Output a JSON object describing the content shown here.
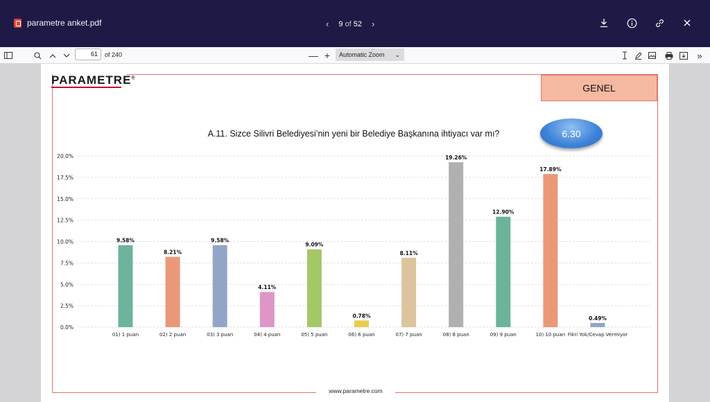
{
  "viewer": {
    "file_name": "parametre anket.pdf",
    "current_page": "9",
    "of_label": "of",
    "total_pages": "52",
    "page_input_value": "61",
    "page_of_label": "of 240",
    "zoom": "Automatic Zoom",
    "icons": [
      "download-icon",
      "info-icon",
      "link-icon",
      "close-icon",
      "sidebar-toggle-icon",
      "search-icon",
      "chevron-up-icon",
      "chevron-down-icon",
      "zoom-out-icon",
      "zoom-in-icon",
      "text-cursor-icon",
      "pen-icon",
      "image-icon",
      "print-icon",
      "save-icon",
      "more-tools-icon"
    ]
  },
  "document": {
    "logo_text": "PARAMETRE",
    "logo_mark": "®",
    "section_badge": "GENEL",
    "question_title": "A.11. Sizce Silivri Belediyesi’nin yeni bir Belediye Başkanına ihtiyacı var mı?",
    "score": "6.30",
    "footer_url": "www.parametre.com"
  },
  "chart_data": {
    "type": "bar",
    "title": "A.11. Sizce Silivri Belediyesi’nin yeni bir Belediye Başkanına ihtiyacı var mı?",
    "xlabel": "",
    "ylabel": "",
    "ylim": [
      0,
      20
    ],
    "yticks": [
      "0.0%",
      "2.5%",
      "5.0%",
      "7.5%",
      "10.0%",
      "12.5%",
      "15.0%",
      "17.5%",
      "20.0%"
    ],
    "ytick_values": [
      0,
      2.5,
      5,
      7.5,
      10,
      12.5,
      15,
      17.5,
      20
    ],
    "grid": "horizontal dashed",
    "categories": [
      "01) 1 puan",
      "02) 2 puan",
      "03) 3 puan",
      "04) 4 puan",
      "05) 5 puan",
      "06) 6 puan",
      "07) 7 puan",
      "08) 8 puan",
      "09) 9 puan",
      "10) 10 puan",
      "Fikri Yok/Cevap Vermiyor"
    ],
    "values": [
      9.58,
      8.21,
      9.58,
      4.11,
      9.09,
      0.78,
      8.11,
      19.26,
      12.9,
      17.89,
      0.49
    ],
    "labels": [
      "9.58%",
      "8.21%",
      "9.58%",
      "4.11%",
      "9.09%",
      "0.78%",
      "8.11%",
      "19.26%",
      "12.90%",
      "17.89%",
      "0.49%"
    ],
    "colors": [
      "#6db39a",
      "#ea9978",
      "#94a4c6",
      "#dd96c6",
      "#a4c867",
      "#e9cd4b",
      "#dcc49e",
      "#b0b0b0",
      "#6db39a",
      "#ea9978",
      "#94a4c6"
    ]
  }
}
